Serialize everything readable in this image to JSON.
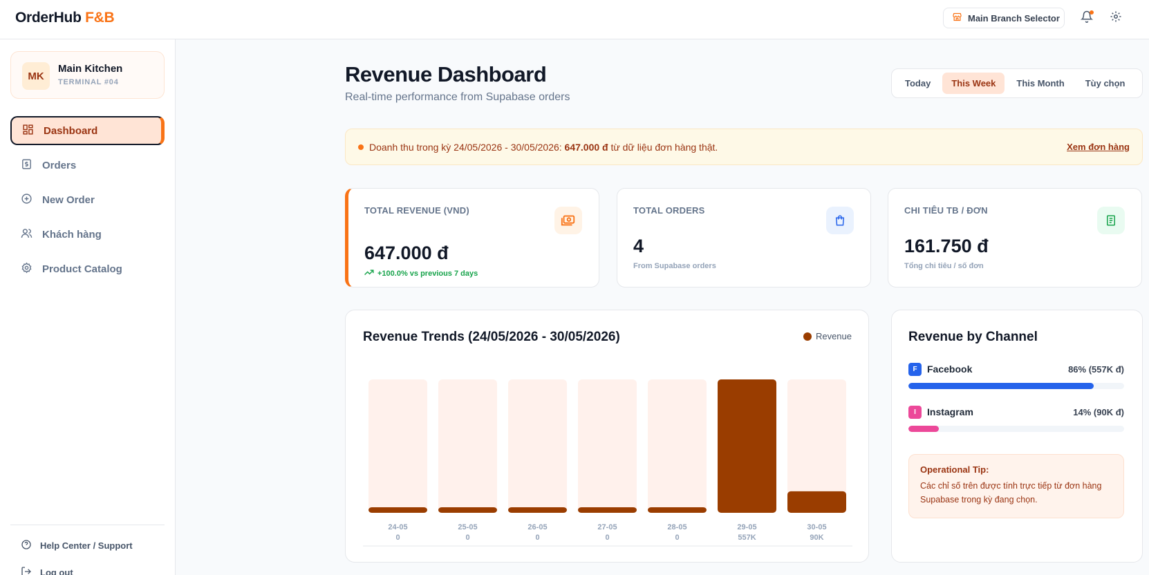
{
  "app": {
    "logo_main": "OrderHub",
    "logo_accent": "F&B"
  },
  "header": {
    "branch_label": "Main Branch Selector"
  },
  "sidebar": {
    "kitchen": {
      "initials": "MK",
      "name": "Main Kitchen",
      "terminal": "TERMINAL #04"
    },
    "items": [
      {
        "label": "Dashboard",
        "icon": "dashboard-icon",
        "active": true
      },
      {
        "label": "Orders",
        "icon": "receipt-icon",
        "active": false
      },
      {
        "label": "New Order",
        "icon": "plus-circle-icon",
        "active": false
      },
      {
        "label": "Khách hàng",
        "icon": "users-icon",
        "active": false
      },
      {
        "label": "Product Catalog",
        "icon": "gear-icon",
        "active": false
      }
    ],
    "footer": [
      {
        "label": "Help Center / Support",
        "icon": "help-icon"
      },
      {
        "label": "Log out",
        "icon": "logout-icon"
      }
    ]
  },
  "page": {
    "title": "Revenue Dashboard",
    "subtitle": "Real-time performance from Supabase orders"
  },
  "range_tabs": [
    {
      "label": "Today",
      "active": false
    },
    {
      "label": "This Week",
      "active": true
    },
    {
      "label": "This Month",
      "active": false
    },
    {
      "label": "Tùy chọn",
      "active": false
    }
  ],
  "banner": {
    "prefix": "Doanh thu trong kỳ 24/05/2026 - 30/05/2026: ",
    "amount": "647.000 đ",
    "suffix": " từ dữ liệu đơn hàng thật.",
    "link": "Xem đơn hàng"
  },
  "stats": {
    "revenue": {
      "label": "TOTAL REVENUE (VND)",
      "value": "647.000 đ",
      "trend": "+100.0% vs previous 7 days"
    },
    "orders": {
      "label": "TOTAL ORDERS",
      "value": "4",
      "note": "From Supabase orders"
    },
    "avg": {
      "label": "CHI TIÊU TB / ĐƠN",
      "value": "161.750 đ",
      "note": "Tổng chi tiêu / số đơn"
    }
  },
  "chart_data": {
    "type": "bar",
    "title": "Revenue Trends (24/05/2026 - 30/05/2026)",
    "categories": [
      "24-05",
      "25-05",
      "26-05",
      "27-05",
      "28-05",
      "29-05",
      "30-05"
    ],
    "value_labels": [
      "0",
      "0",
      "0",
      "0",
      "0",
      "557K",
      "90K"
    ],
    "series": [
      {
        "name": "Revenue",
        "values": [
          0,
          0,
          0,
          0,
          0,
          557000,
          90000
        ]
      }
    ],
    "ylim": [
      0,
      557000
    ],
    "legend": "top-right",
    "grid": false,
    "colors": {
      "bar": "#9a3d00",
      "track": "#fff1ec"
    }
  },
  "channels": {
    "title": "Revenue by Channel",
    "items": [
      {
        "name": "Facebook",
        "badge": "F",
        "value": "86% (557K đ)",
        "percent": 86,
        "color": "#2563eb"
      },
      {
        "name": "Instagram",
        "badge": "I",
        "value": "14% (90K đ)",
        "percent": 14,
        "color": "#ec4899"
      }
    ],
    "tip_title": "Operational Tip:",
    "tip_text": "Các chỉ số trên được tính trực tiếp từ đơn hàng Supabase trong kỳ đang chọn."
  }
}
